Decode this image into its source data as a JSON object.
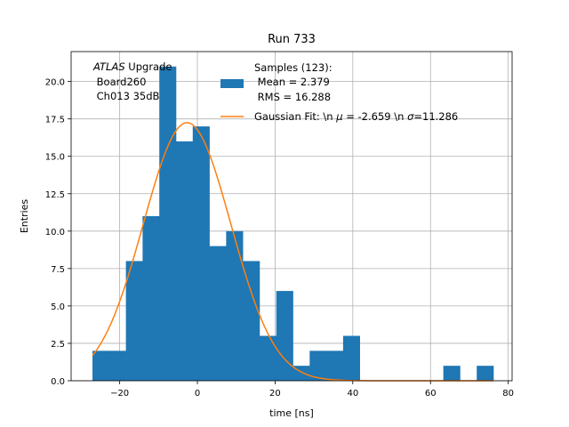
{
  "chart_data": {
    "type": "bar",
    "title": "Run 733",
    "xlabel": "time [ns]",
    "ylabel": "Entries",
    "xlim": [
      -32.5,
      81.0
    ],
    "ylim": [
      0,
      22.0
    ],
    "x_ticks": [
      -20,
      0,
      20,
      40,
      60,
      80
    ],
    "x_tick_labels": [
      "−20",
      "0",
      "20",
      "40",
      "60",
      "80"
    ],
    "y_ticks": [
      0,
      2.5,
      5,
      7.5,
      10,
      12.5,
      15,
      17.5,
      20
    ],
    "y_tick_labels": [
      "0.0",
      "2.5",
      "5.0",
      "7.5",
      "10.0",
      "12.5",
      "15.0",
      "17.5",
      "20.0"
    ],
    "grid": true,
    "legend_placement": "top-right",
    "bin_edges": [
      -27.0,
      -22.7,
      -18.4,
      -14.1,
      -9.8,
      -5.5,
      -1.2,
      3.1,
      7.4,
      11.7,
      16.0,
      20.3,
      24.6,
      28.9,
      33.2,
      37.5,
      41.8,
      46.1,
      50.4,
      54.7,
      59.0,
      63.3,
      67.6,
      71.9,
      76.2
    ],
    "series": [
      {
        "name": "Samples (123):\n Mean = 2.379\n RMS = 16.288",
        "kind": "histogram",
        "color": "#1f77b4",
        "values": [
          2,
          2,
          8,
          11,
          21,
          16,
          17,
          9,
          10,
          8,
          3,
          6,
          1,
          2,
          2,
          3,
          0,
          0,
          0,
          0,
          0,
          1,
          0,
          1
        ]
      },
      {
        "name": "Gaussian Fit: \\n μ = -2.659 \\n σ=11.286",
        "kind": "line",
        "color": "#ff7f0e",
        "amplitude": 17.25,
        "mu": -2.659,
        "sigma": 11.286,
        "x_range": [
          -27.0,
          76.2
        ]
      }
    ],
    "legend": {
      "samples_lines": [
        "Samples (123):",
        " Mean = 2.379",
        " RMS = 16.288"
      ],
      "fit_prefix": "Gaussian Fit: \\n ",
      "fit_mu_symbol": "μ",
      "fit_mu_value": " = -2.659 \\n ",
      "fit_sigma_symbol": "σ",
      "fit_sigma_value": "=11.286"
    },
    "annotation": {
      "atlas": "ATLAS",
      "upgrade": " Upgrade",
      "line2": " Board260",
      "line3": " Ch013 35dB"
    }
  }
}
